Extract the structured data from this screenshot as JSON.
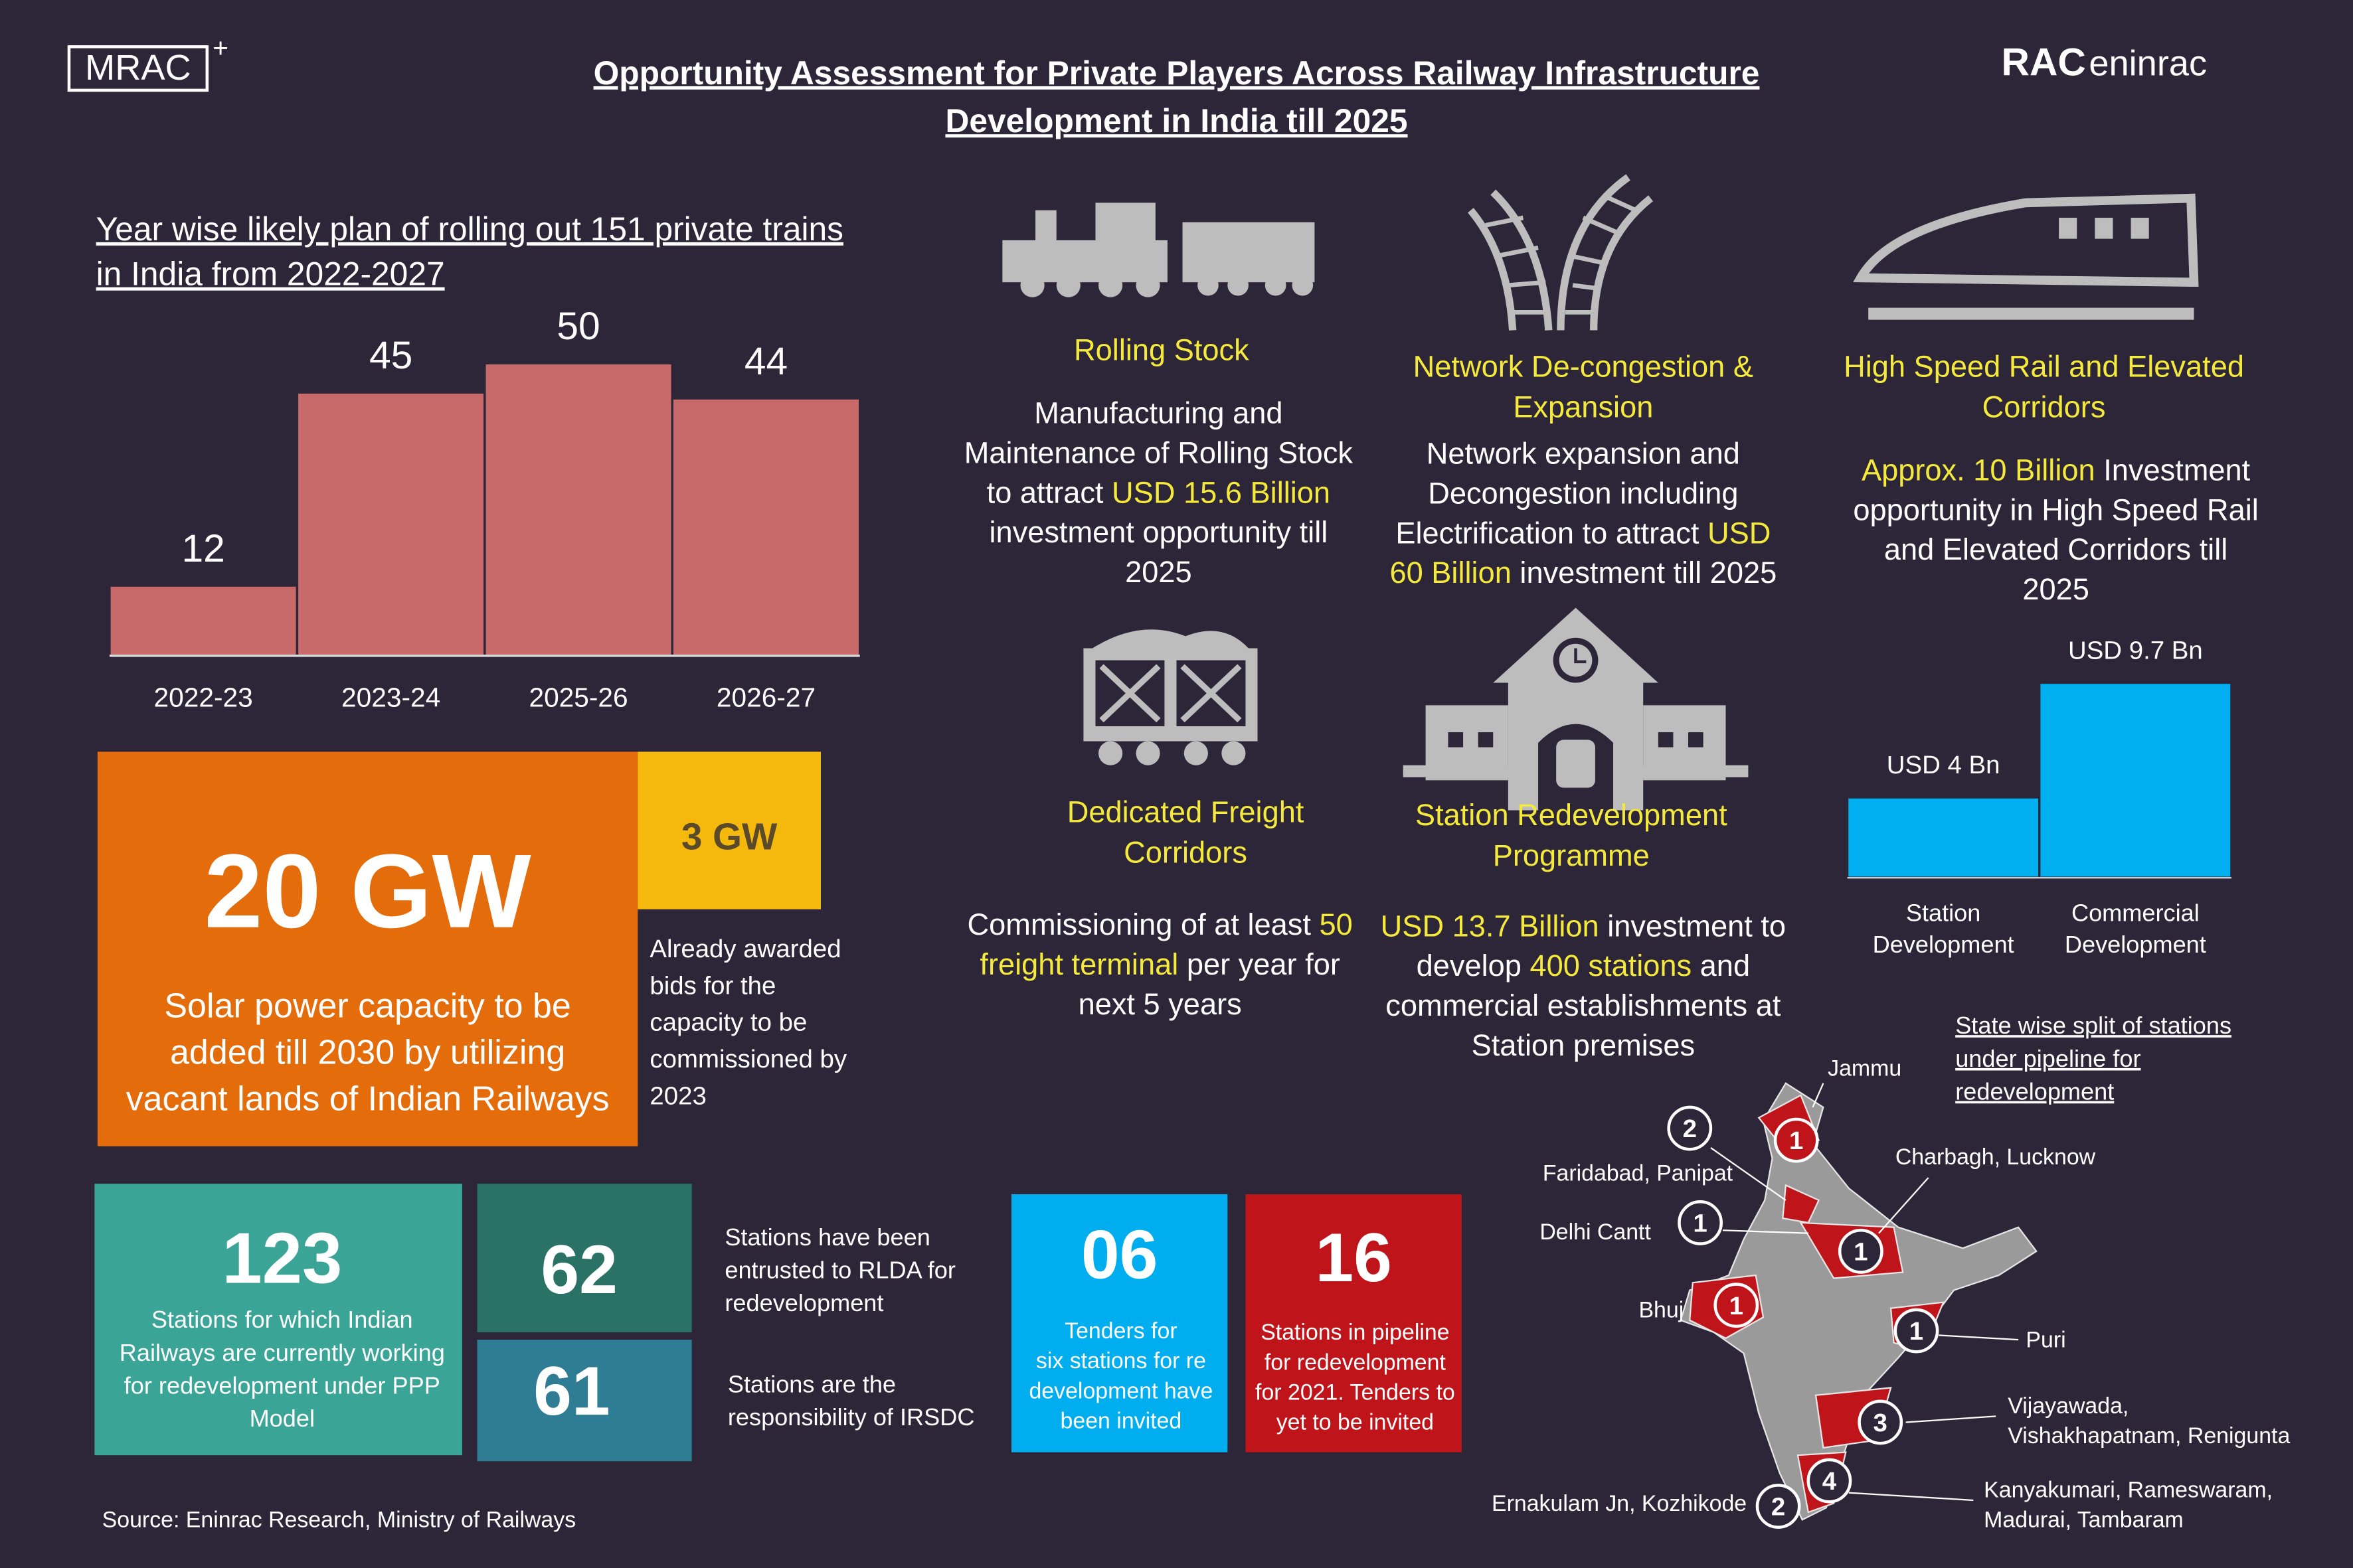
{
  "header": {
    "logo_left": "MRAC",
    "logo_left_plus": "+",
    "logo_right_bold": "RAC",
    "logo_right_light": "eninrac",
    "title_lines": [
      "Opportunity Assessment for Private Players Across Railway Infrastructure",
      "Development in India till 2025"
    ]
  },
  "trains_chart": {
    "type": "bar",
    "title_lines": [
      "Year wise likely plan of rolling out 151 private trains",
      "in India from 2022-2027"
    ],
    "categories": [
      "2022-23",
      "2023-24",
      "2025-26",
      "2026-27"
    ],
    "values": [
      12,
      45,
      50,
      44
    ],
    "color": "#c96a6a"
  },
  "solar": {
    "big": "20 GW",
    "lines": [
      "Solar power capacity to be",
      "added till 2030 by utilizing",
      "vacant lands of Indian Railways"
    ],
    "small": "3 GW",
    "small_lines": [
      "Already awarded",
      "bids for the",
      "capacity to be",
      "commissioned by",
      "2023"
    ]
  },
  "tiles": [
    {
      "value": "123",
      "lines": [
        "Stations for which Indian",
        "Railways are currently working",
        "for redevelopment under PPP",
        "Model"
      ]
    },
    {
      "value": "62",
      "lines": [
        "Stations have been",
        "entrusted to RLDA for",
        "redevelopment"
      ]
    },
    {
      "value": "61",
      "lines": [
        "Stations are the",
        "responsibility of IRSDC"
      ]
    },
    {
      "value": "06",
      "lines": [
        "Tenders for",
        "six stations for re",
        "development have",
        "been invited"
      ]
    },
    {
      "value": "16",
      "lines": [
        "Stations in pipeline",
        "for redevelopment",
        "for 2021. Tenders to",
        "yet to be invited"
      ]
    }
  ],
  "sectors": [
    {
      "title": [
        "Rolling Stock"
      ],
      "lines": [
        [
          {
            "text": "Manufacturing and"
          }
        ],
        [
          {
            "text": "Maintenance of Rolling Stock"
          }
        ],
        [
          {
            "text": "to attract "
          },
          {
            "text": "USD 15.6 Billion",
            "highlight": true
          }
        ],
        [
          {
            "text": "investment opportunity till"
          }
        ],
        [
          {
            "text": "2025"
          }
        ]
      ]
    },
    {
      "title": [
        "Network De-congestion &",
        "Expansion"
      ],
      "lines": [
        [
          {
            "text": "Network expansion and"
          }
        ],
        [
          {
            "text": "Decongestion including"
          }
        ],
        [
          {
            "text": "Electrification to attract "
          },
          {
            "text": "USD",
            "highlight": true
          }
        ],
        [
          {
            "text": "60 Billion",
            "highlight": true
          },
          {
            "text": " investment till 2025"
          }
        ]
      ]
    },
    {
      "title": [
        "High Speed Rail and Elevated",
        "Corridors"
      ],
      "lines": [
        [
          {
            "text": "Approx. 10 Billion",
            "highlight": true
          },
          {
            "text": " Investment"
          }
        ],
        [
          {
            "text": "opportunity in High Speed Rail"
          }
        ],
        [
          {
            "text": "and Elevated Corridors till"
          }
        ],
        [
          {
            "text": "2025"
          }
        ]
      ]
    },
    {
      "title": [
        "Dedicated Freight",
        "Corridors"
      ],
      "lines": [
        [
          {
            "text": "Commissioning of at least "
          },
          {
            "text": "50",
            "highlight": true
          }
        ],
        [
          {
            "text": "freight terminal",
            "highlight": true
          },
          {
            "text": " per year for"
          }
        ],
        [
          {
            "text": "next 5 years"
          }
        ]
      ]
    },
    {
      "title": [
        "Station Redevelopment",
        "Programme"
      ],
      "lines": [
        [
          {
            "text": "USD 13.7 Billion",
            "highlight": true
          },
          {
            "text": " investment to"
          }
        ],
        [
          {
            "text": "develop "
          },
          {
            "text": "400 stations",
            "highlight": true
          },
          {
            "text": " and"
          }
        ],
        [
          {
            "text": "commercial establishments at"
          }
        ],
        [
          {
            "text": "Station premises"
          }
        ]
      ]
    }
  ],
  "station_chart": {
    "type": "bar",
    "categories": [
      [
        "Station",
        "Development"
      ],
      [
        "Commercial",
        "Development"
      ]
    ],
    "values": [
      4,
      9.7
    ],
    "value_labels": [
      "USD 4 Bn",
      "USD 9.7 Bn"
    ],
    "color": "#00b0f0"
  },
  "map": {
    "title_lines": [
      "State wise split of stations",
      "under pipeline for",
      "redevelopment"
    ],
    "markers": [
      {
        "count": "1",
        "label": [
          "Jammu"
        ]
      },
      {
        "count": "2",
        "label": [
          "Faridabad, Panipat"
        ]
      },
      {
        "count": "1",
        "label": [
          "Delhi Cantt"
        ]
      },
      {
        "count": "1",
        "label": [
          "Charbagh, Lucknow"
        ]
      },
      {
        "count": "1",
        "label": [
          "Bhuj"
        ]
      },
      {
        "count": "1",
        "label": [
          "Puri"
        ]
      },
      {
        "count": "3",
        "label": [
          "Vijayawada,",
          "Vishakhapatnam, Renigunta"
        ]
      },
      {
        "count": "4",
        "label": [
          "Kanyakumari, Rameswaram,",
          "Madurai, Tambaram"
        ]
      },
      {
        "count": "2",
        "label": [
          "Ernakulam Jn, Kozhikode"
        ]
      }
    ]
  },
  "source": "Source: Eninrac Research, Ministry of Railways"
}
